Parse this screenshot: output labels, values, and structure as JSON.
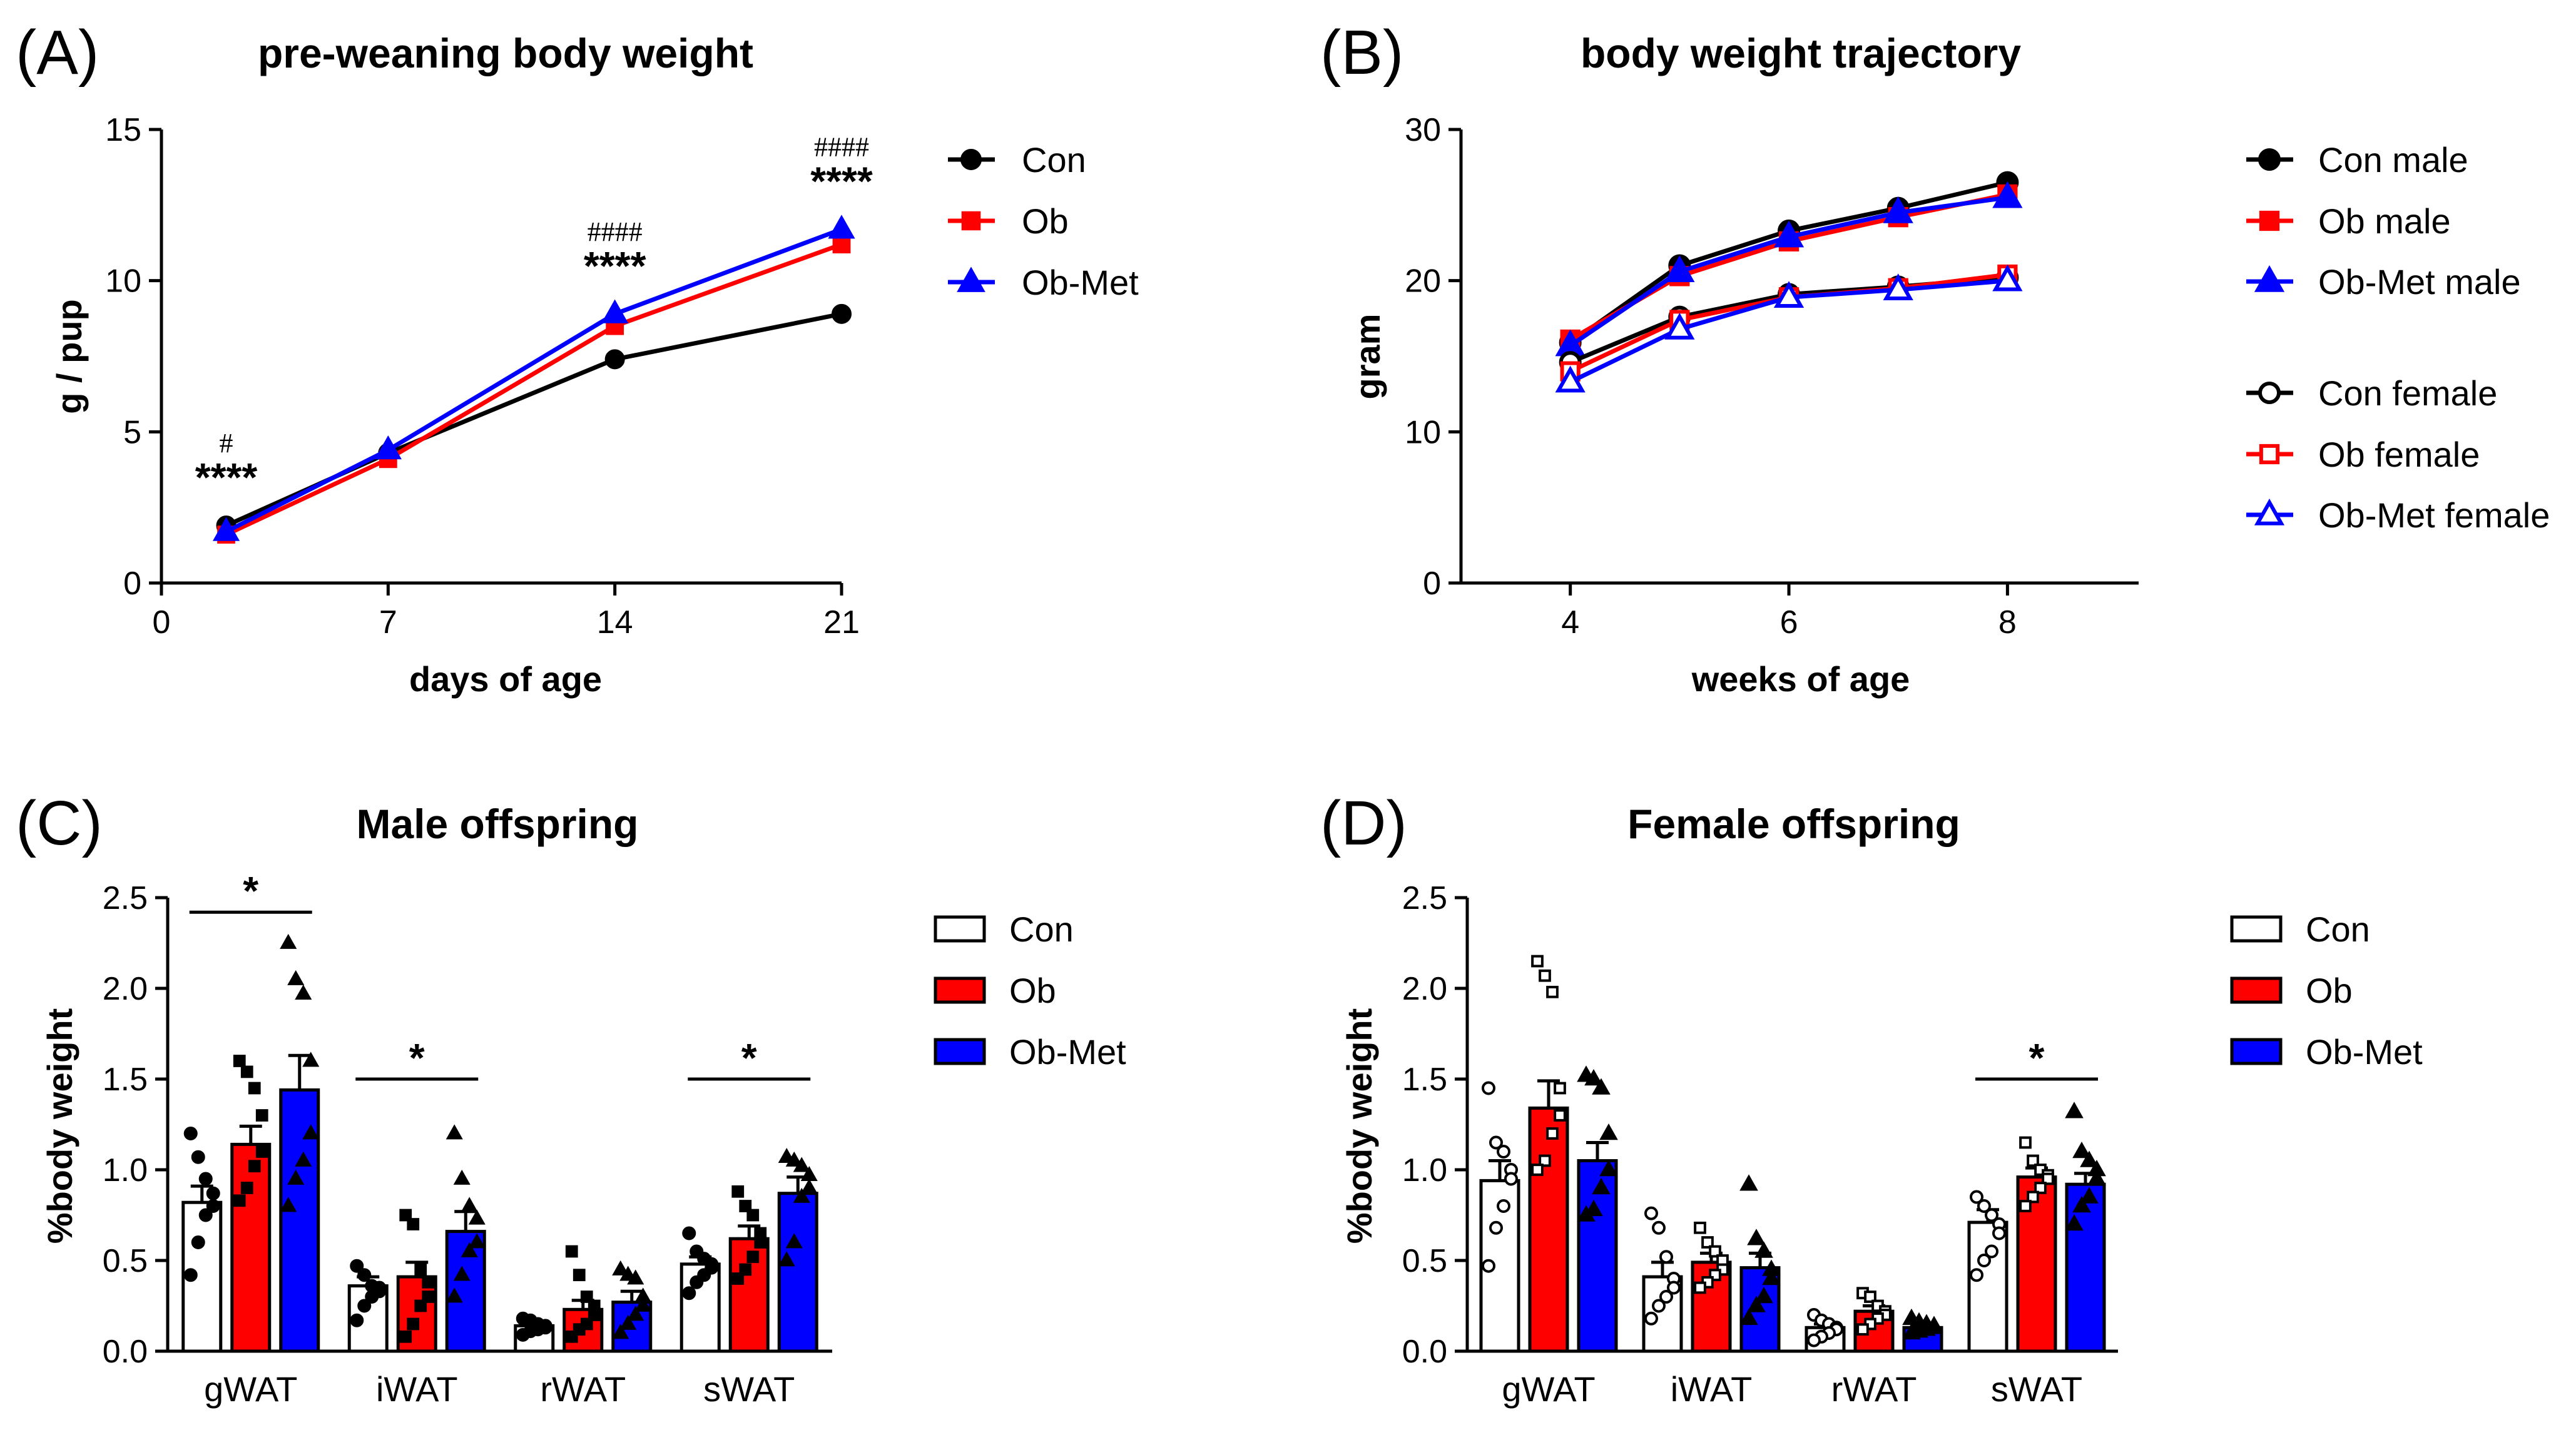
{
  "colors": {
    "con": "#000000",
    "ob": "#ff0000",
    "obmet": "#0000ff"
  },
  "chart_data": [
    {
      "panel_label": "(A)",
      "type": "line",
      "title": "pre-weaning body weight",
      "xlabel": "days of age",
      "ylabel": "g / pup",
      "xlim": [
        0,
        21
      ],
      "ylim": [
        0,
        15
      ],
      "xticks": [
        0,
        7,
        14,
        21
      ],
      "yticks": [
        0,
        5,
        10,
        15
      ],
      "x": [
        2,
        7,
        14,
        21
      ],
      "series": [
        {
          "name": "Con",
          "values": [
            1.9,
            4.3,
            7.4,
            8.9
          ],
          "marker": "circle"
        },
        {
          "name": "Ob",
          "values": [
            1.6,
            4.1,
            8.5,
            11.2
          ],
          "marker": "square"
        },
        {
          "name": "Ob-Met",
          "values": [
            1.7,
            4.4,
            8.9,
            11.7
          ],
          "marker": "triangle"
        }
      ],
      "annotations": [
        {
          "x": 2,
          "upper": "#",
          "lower": "****"
        },
        {
          "x": 14,
          "upper": "####",
          "lower": "****"
        },
        {
          "x": 21,
          "upper": "####",
          "lower": "****"
        }
      ]
    },
    {
      "panel_label": "(B)",
      "type": "line",
      "title": "body weight trajectory",
      "xlabel": "weeks of age",
      "ylabel": "gram",
      "xlim": [
        3,
        9.2
      ],
      "ylim": [
        0,
        30
      ],
      "xticks": [
        4,
        6,
        8
      ],
      "yticks": [
        0,
        10,
        20,
        30
      ],
      "x": [
        4,
        5,
        6,
        7,
        8
      ],
      "series": [
        {
          "name": "Con male",
          "values": [
            15.9,
            21.0,
            23.3,
            24.8,
            26.5
          ],
          "marker": "circle",
          "filled": true
        },
        {
          "name": "Ob male",
          "values": [
            16.1,
            20.3,
            22.6,
            24.2,
            25.7
          ],
          "marker": "square",
          "filled": true
        },
        {
          "name": "Ob-Met male",
          "values": [
            15.7,
            20.6,
            22.9,
            24.5,
            25.5
          ],
          "marker": "triangle",
          "filled": true
        },
        {
          "name": "Con female",
          "values": [
            14.6,
            17.6,
            19.1,
            19.6,
            20.2
          ],
          "marker": "circle",
          "filled": false
        },
        {
          "name": "Ob female",
          "values": [
            14.0,
            17.4,
            18.9,
            19.5,
            20.4
          ],
          "marker": "square",
          "filled": false
        },
        {
          "name": "Ob-Met female",
          "values": [
            13.3,
            16.8,
            18.9,
            19.4,
            20.0
          ],
          "marker": "triangle",
          "filled": false
        }
      ]
    },
    {
      "panel_label": "(C)",
      "type": "bar",
      "title": "Male offspring",
      "xlabel": "",
      "ylabel": "%body weight",
      "ylim": [
        0,
        2.5
      ],
      "yticks": [
        0.0,
        0.5,
        1.0,
        1.5,
        2.0,
        2.5
      ],
      "ytick_labels": [
        "0.0",
        "0.5",
        "1.0",
        "1.5",
        "2.0",
        "2.5"
      ],
      "categories": [
        "gWAT",
        "iWAT",
        "rWAT",
        "sWAT"
      ],
      "series": [
        {
          "name": "Con",
          "values": [
            0.82,
            0.36,
            0.14,
            0.48
          ],
          "errors": [
            0.09,
            0.05,
            0.02,
            0.04
          ],
          "points": [
            [
              1.2,
              1.07,
              0.95,
              0.87,
              0.8,
              0.75,
              0.6,
              0.42
            ],
            [
              0.47,
              0.42,
              0.36,
              0.35,
              0.33,
              0.3,
              0.25,
              0.17
            ],
            [
              0.18,
              0.17,
              0.15,
              0.14,
              0.13,
              0.12,
              0.11,
              0.09
            ],
            [
              0.65,
              0.55,
              0.51,
              0.48,
              0.46,
              0.42,
              0.38,
              0.32
            ]
          ]
        },
        {
          "name": "Ob",
          "values": [
            1.14,
            0.41,
            0.23,
            0.62
          ],
          "errors": [
            0.1,
            0.08,
            0.05,
            0.07
          ],
          "points": [
            [
              1.6,
              1.54,
              1.45,
              1.3,
              1.1,
              1.02,
              0.9,
              0.83
            ],
            [
              0.75,
              0.7,
              0.45,
              0.38,
              0.3,
              0.25,
              0.15,
              0.08
            ],
            [
              0.55,
              0.42,
              0.3,
              0.25,
              0.2,
              0.15,
              0.12,
              0.08
            ],
            [
              0.88,
              0.8,
              0.75,
              0.65,
              0.6,
              0.52,
              0.45,
              0.4
            ]
          ]
        },
        {
          "name": "Ob-Met",
          "values": [
            1.44,
            0.66,
            0.27,
            0.87
          ],
          "errors": [
            0.19,
            0.11,
            0.06,
            0.09
          ],
          "points": [
            [
              2.25,
              2.05,
              1.97,
              1.6,
              1.2,
              1.05,
              0.95,
              0.8
            ],
            [
              1.2,
              0.95,
              0.8,
              0.73,
              0.6,
              0.55,
              0.42,
              0.3
            ],
            [
              0.45,
              0.42,
              0.4,
              0.3,
              0.25,
              0.2,
              0.15,
              0.1
            ],
            [
              1.07,
              1.05,
              1.02,
              0.97,
              0.9,
              0.85,
              0.6,
              0.5
            ]
          ]
        }
      ],
      "significance": [
        {
          "category": "gWAT",
          "label": "*",
          "y": 2.42
        },
        {
          "category": "iWAT",
          "label": "*",
          "y": 1.5
        },
        {
          "category": "sWAT",
          "label": "*",
          "y": 1.5
        }
      ]
    },
    {
      "panel_label": "(D)",
      "type": "bar",
      "title": "Female offspring",
      "xlabel": "",
      "ylabel": "%body weight",
      "ylim": [
        0,
        2.5
      ],
      "yticks": [
        0.0,
        0.5,
        1.0,
        1.5,
        2.0,
        2.5
      ],
      "ytick_labels": [
        "0.0",
        "0.5",
        "1.0",
        "1.5",
        "2.0",
        "2.5"
      ],
      "categories": [
        "gWAT",
        "iWAT",
        "rWAT",
        "sWAT"
      ],
      "series": [
        {
          "name": "Con",
          "values": [
            0.94,
            0.41,
            0.13,
            0.71
          ],
          "errors": [
            0.11,
            0.08,
            0.02,
            0.07
          ],
          "points": [
            [
              1.45,
              1.15,
              1.1,
              1.0,
              0.95,
              0.8,
              0.68,
              0.47
            ],
            [
              0.76,
              0.68,
              0.52,
              0.4,
              0.35,
              0.3,
              0.25,
              0.18
            ],
            [
              0.2,
              0.17,
              0.15,
              0.13,
              0.12,
              0.1,
              0.08,
              0.06
            ],
            [
              0.85,
              0.8,
              0.75,
              0.7,
              0.65,
              0.55,
              0.5,
              0.42
            ]
          ]
        },
        {
          "name": "Ob",
          "values": [
            1.34,
            0.49,
            0.22,
            0.96
          ],
          "errors": [
            0.15,
            0.05,
            0.03,
            0.05
          ],
          "points": [
            [
              2.15,
              2.07,
              1.98,
              1.45,
              1.3,
              1.2,
              1.05,
              1.0
            ],
            [
              0.68,
              0.6,
              0.55,
              0.5,
              0.45,
              0.42,
              0.38,
              0.35
            ],
            [
              0.32,
              0.3,
              0.25,
              0.22,
              0.2,
              0.18,
              0.15,
              0.12
            ],
            [
              1.15,
              1.05,
              1.0,
              0.97,
              0.95,
              0.9,
              0.85,
              0.8
            ]
          ]
        },
        {
          "name": "Ob-Met",
          "values": [
            1.05,
            0.46,
            0.13,
            0.92
          ],
          "errors": [
            0.1,
            0.08,
            0.02,
            0.06
          ],
          "points": [
            [
              1.52,
              1.5,
              1.45,
              1.2,
              1.0,
              0.9,
              0.78,
              0.75
            ],
            [
              0.92,
              0.62,
              0.55,
              0.45,
              0.4,
              0.3,
              0.25,
              0.18
            ],
            [
              0.18,
              0.16,
              0.15,
              0.14,
              0.13,
              0.12,
              0.11,
              0.1
            ],
            [
              1.32,
              1.1,
              1.05,
              1.0,
              0.95,
              0.85,
              0.8,
              0.7
            ]
          ]
        }
      ],
      "significance": [
        {
          "category": "sWAT",
          "label": "*",
          "y": 1.5
        }
      ]
    }
  ]
}
